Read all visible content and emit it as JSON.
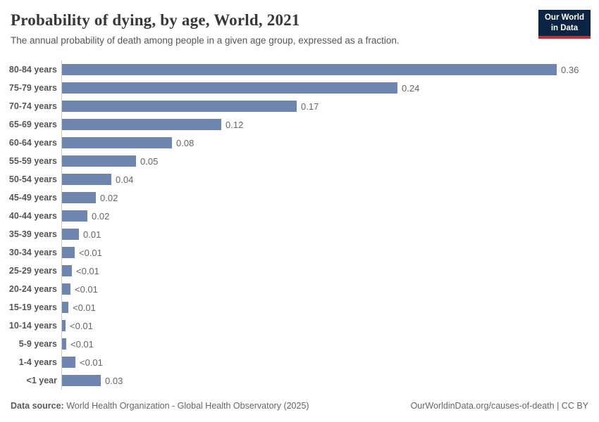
{
  "header": {
    "title": "Probability of dying, by age, World, 2021",
    "subtitle": "The annual probability of death among people in a given age group, expressed as a fraction.",
    "logo": {
      "line1": "Our World",
      "line2": "in Data"
    }
  },
  "chart_data": {
    "type": "bar",
    "orientation": "horizontal",
    "title": "Probability of dying, by age, World, 2021",
    "xlabel": "",
    "ylabel": "",
    "xlim": [
      0,
      0.36
    ],
    "grid": false,
    "legend": "none",
    "value_label_position": "right-of-bar",
    "categories": [
      "80-84 years",
      "75-79 years",
      "70-74 years",
      "65-69 years",
      "60-64 years",
      "55-59 years",
      "50-54 years",
      "45-49 years",
      "40-44 years",
      "35-39 years",
      "30-34 years",
      "25-29 years",
      "20-24 years",
      "15-19 years",
      "10-14 years",
      "5-9 years",
      "1-4 years",
      "<1 year"
    ],
    "values": [
      0.36,
      0.244,
      0.171,
      0.116,
      0.08,
      0.054,
      0.036,
      0.0246,
      0.0185,
      0.0123,
      0.0092,
      0.0072,
      0.0062,
      0.0046,
      0.0025,
      0.0031,
      0.0097,
      0.0282
    ],
    "value_labels": [
      "0.36",
      "0.24",
      "0.17",
      "0.12",
      "0.08",
      "0.05",
      "0.04",
      "0.02",
      "0.02",
      "0.01",
      "<0.01",
      "<0.01",
      "<0.01",
      "<0.01",
      "<0.01",
      "<0.01",
      "<0.01",
      "0.03"
    ]
  },
  "colors": {
    "bar": "#6e85af",
    "axis_line": "#c8c8c8",
    "logo_bg": "#0b2443",
    "logo_accent": "#be2d32"
  },
  "footer": {
    "datasource_label": "Data source:",
    "datasource_text": " World Health Organization - Global Health Observatory (2025)",
    "right_text": "OurWorldinData.org/causes-of-death | CC BY"
  }
}
